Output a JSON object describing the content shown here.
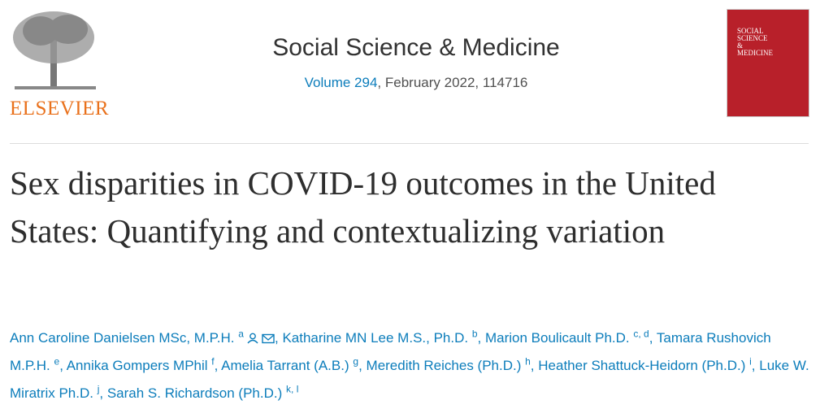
{
  "publisher": {
    "name": "ELSEVIER"
  },
  "journal": {
    "name": "Social Science & Medicine",
    "volume": "Volume 294",
    "issue_info": ", February 2022, 114716"
  },
  "cover": {
    "title_lines": [
      "SOCIAL",
      "SCIENCE",
      "&",
      "MEDICINE"
    ]
  },
  "article": {
    "title": "Sex disparities in COVID-19 outcomes in the United States: Quantifying and contextualizing variation"
  },
  "separator": ",",
  "authors": [
    {
      "name": "Ann Caroline Danielsen MSc, M.P.H.",
      "affiliations": [
        "a"
      ]
    },
    {
      "name": "Katharine MN Lee M.S., Ph.D.",
      "affiliations": [
        "b"
      ]
    },
    {
      "name": "Marion Boulicault Ph.D.",
      "affiliations": [
        "c",
        "d"
      ]
    },
    {
      "name": "Tamara Rushovich M.P.H.",
      "affiliations": [
        "e"
      ]
    },
    {
      "name": "Annika Gompers MPhil",
      "affiliations": [
        "f"
      ]
    },
    {
      "name": "Amelia Tarrant (A.B.)",
      "affiliations": [
        "g"
      ]
    },
    {
      "name": "Meredith Reiches (Ph.D.)",
      "affiliations": [
        "h"
      ]
    },
    {
      "name": "Heather Shattuck-Heidorn (Ph.D.)",
      "affiliations": [
        "i"
      ]
    },
    {
      "name": "Luke W. Miratrix Ph.D.",
      "affiliations": [
        "j"
      ]
    },
    {
      "name": "Sarah S. Richardson (Ph.D.)",
      "affiliations": [
        "k",
        "l"
      ]
    }
  ]
}
